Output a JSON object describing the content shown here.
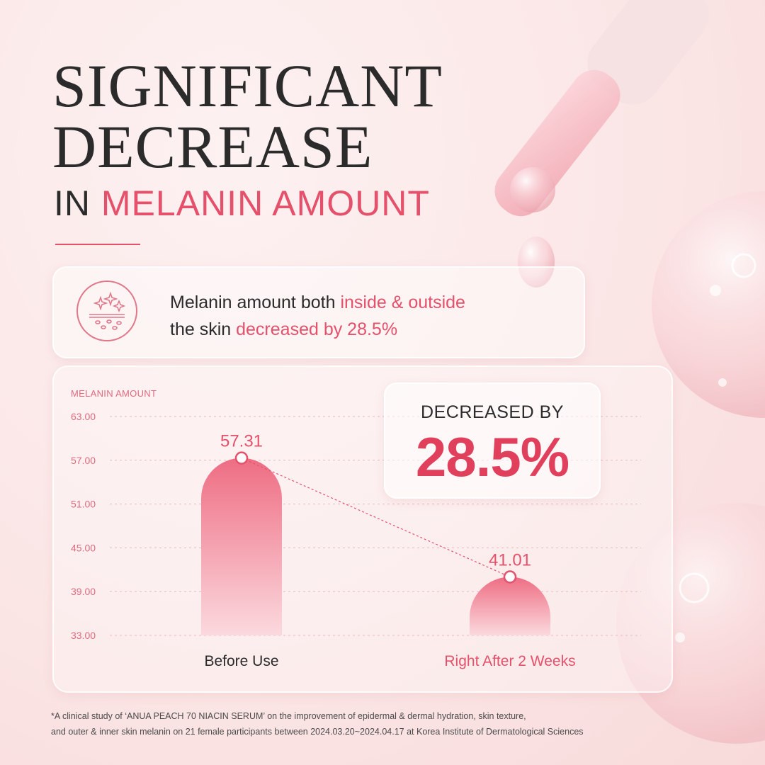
{
  "headline": {
    "line1": "SIGNIFICANT",
    "line2": "DECREASE",
    "line3_prefix": "IN",
    "line3_accent": "MELANIN AMOUNT"
  },
  "info_box": {
    "icon": "skin-sparkle-icon",
    "line1_plain": "Melanin amount both",
    "line1_highlight": "inside & outside",
    "line2_plain": "the skin",
    "line2_highlight": "decreased by 28.5%"
  },
  "callout": {
    "label": "DECREASED BY",
    "value": "28.5%"
  },
  "colors": {
    "accent": "#e5506b",
    "bar_top": "#ee6d83",
    "bar_bottom": "#fbd9de",
    "text": "#2b2b2b"
  },
  "chart_data": {
    "type": "bar",
    "ylabel": "MELANIN AMOUNT",
    "ylim": [
      33,
      63
    ],
    "yticks": [
      "63.00",
      "57.00",
      "51.00",
      "45.00",
      "39.00",
      "33.00"
    ],
    "categories": [
      "Before Use",
      "Right After 2 Weeks"
    ],
    "values": [
      57.31,
      41.01
    ],
    "value_labels": [
      "57.31",
      "41.01"
    ],
    "grid": true
  },
  "footnote": {
    "line1": "*A clinical study of ‘ANUA PEACH 70 NIACIN SERUM’ on the improvement of epidermal & dermal hydration, skin texture,",
    "line2": "and outer & inner skin melanin on 21 female participants between 2024.03.20~2024.04.17 at Korea Institute of Dermatological Sciences"
  }
}
